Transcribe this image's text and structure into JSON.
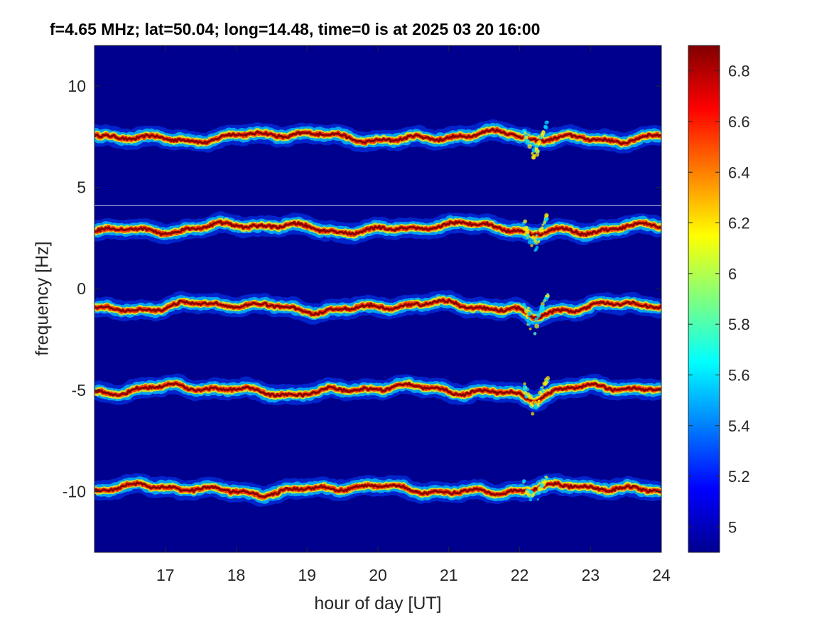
{
  "chart_data": {
    "type": "heatmap",
    "title": "f=4.65 MHz;  lat=50.04; long=14.48, time=0 is at 2025 03 20 16:00",
    "xlabel": "hour of day [UT]",
    "ylabel": "frequency [Hz]",
    "xlim": [
      16,
      24
    ],
    "ylim": [
      -13,
      12
    ],
    "xticks": [
      17,
      18,
      19,
      20,
      21,
      22,
      23,
      24
    ],
    "xtick_labels": [
      "17",
      "18",
      "19",
      "20",
      "21",
      "22",
      "23",
      "24"
    ],
    "yticks": [
      10,
      5,
      0,
      -5,
      -10
    ],
    "ytick_labels": [
      "10",
      "5",
      "0",
      "-5",
      "-10"
    ],
    "colorbar": {
      "colormap": "jet",
      "clim": [
        4.9,
        6.9
      ],
      "ticks": [
        5,
        5.2,
        5.4,
        5.6,
        5.8,
        6,
        6.2,
        6.4,
        6.6,
        6.8
      ],
      "tick_labels": [
        "5",
        "5.2",
        "5.4",
        "5.6",
        "5.8",
        "6",
        "6.2",
        "6.4",
        "6.6",
        "6.8"
      ]
    },
    "background_color": "#00008f",
    "series": [
      {
        "base_hz": 8.5,
        "dip_at_22_2_hz": -1.2
      },
      {
        "base_hz": 4.0,
        "dip_at_22_2_hz": -1.3
      },
      {
        "base_hz": 0.1,
        "dip_at_22_2_hz": -1.4
      },
      {
        "base_hz": -4.0,
        "dip_at_22_2_hz": -1.3
      },
      {
        "base_hz": -8.9,
        "dip_at_22_2_hz": -1.0
      }
    ],
    "reference_line_hz": 4.1,
    "grid": false
  }
}
